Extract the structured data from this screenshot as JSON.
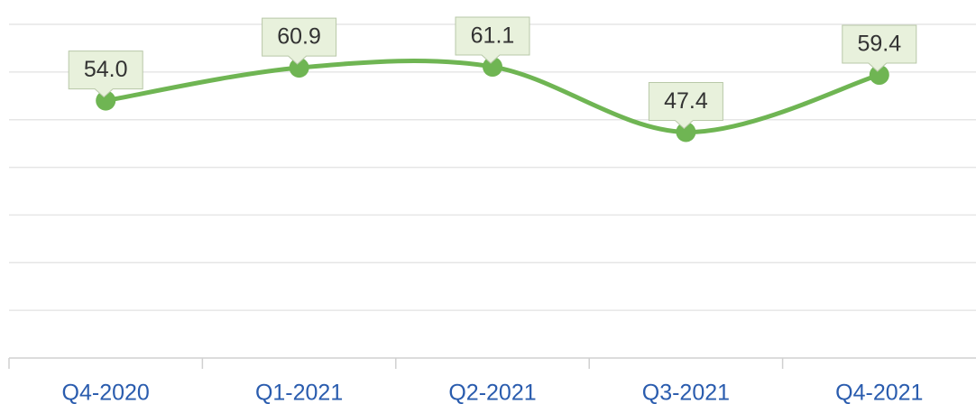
{
  "chart_data": {
    "type": "line",
    "categories": [
      "Q4-2020",
      "Q1-2021",
      "Q2-2021",
      "Q3-2021",
      "Q4-2021"
    ],
    "series": [
      {
        "color": "#6fb553",
        "values": [
          54.0,
          60.9,
          61.1,
          47.4,
          59.4
        ],
        "value_labels": [
          "54.0",
          "60.9",
          "61.1",
          "47.4",
          "59.4"
        ]
      }
    ],
    "ylim": [
      0,
      70
    ],
    "yticks": [
      0,
      10,
      20,
      30,
      40,
      50,
      60,
      70
    ],
    "grid": true
  }
}
